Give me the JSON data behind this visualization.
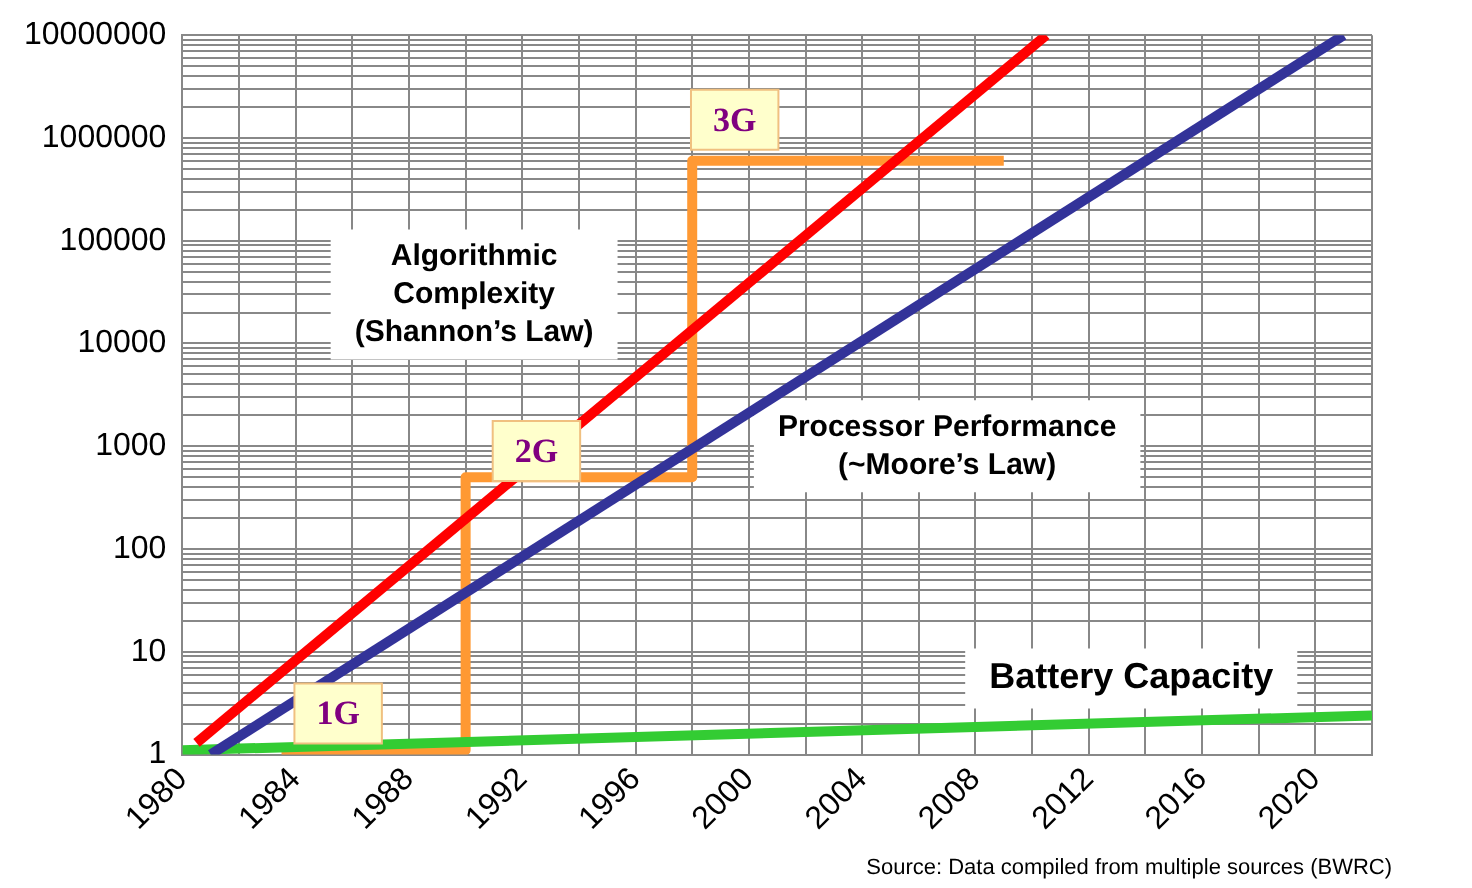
{
  "chart_data": {
    "type": "line",
    "log": "y",
    "grid": true,
    "legend": false,
    "marker": "none",
    "line_style": "solid",
    "xlim": [
      1980,
      2022
    ],
    "xticks": [
      1980,
      {
        "value": 1982,
        "label": null
      },
      1984,
      {
        "value": 1986,
        "label": null
      },
      1988,
      {
        "value": 1990,
        "label": null
      },
      1992,
      {
        "value": 1994,
        "label": null
      },
      1996,
      {
        "value": 1998,
        "label": null
      },
      2000,
      {
        "value": 2002,
        "label": null
      },
      2004,
      {
        "value": 2006,
        "label": null
      },
      2008,
      {
        "value": 2010,
        "label": null
      },
      2012,
      {
        "value": 2014,
        "label": null
      },
      2016,
      {
        "value": 2018,
        "label": null
      },
      2020,
      {
        "value": 2022,
        "label": null
      }
    ],
    "ylim": [
      1,
      10000000
    ],
    "yticks": [
      1,
      {
        "value": 2,
        "label": null
      },
      {
        "value": 3,
        "label": null
      },
      {
        "value": 4,
        "label": null
      },
      {
        "value": 5,
        "label": null
      },
      {
        "value": 6,
        "label": null
      },
      {
        "value": 7,
        "label": null
      },
      {
        "value": 8,
        "label": null
      },
      {
        "value": 9,
        "label": null
      },
      10,
      {
        "value": 20,
        "label": null
      },
      {
        "value": 30,
        "label": null
      },
      {
        "value": 40,
        "label": null
      },
      {
        "value": 50,
        "label": null
      },
      {
        "value": 60,
        "label": null
      },
      {
        "value": 70,
        "label": null
      },
      {
        "value": 80,
        "label": null
      },
      {
        "value": 90,
        "label": null
      },
      100,
      {
        "value": 200,
        "label": null
      },
      {
        "value": 300,
        "label": null
      },
      {
        "value": 400,
        "label": null
      },
      {
        "value": 500,
        "label": null
      },
      {
        "value": 600,
        "label": null
      },
      {
        "value": 700,
        "label": null
      },
      {
        "value": 800,
        "label": null
      },
      {
        "value": 900,
        "label": null
      },
      1000,
      {
        "value": 2000,
        "label": null
      },
      {
        "value": 3000,
        "label": null
      },
      {
        "value": 4000,
        "label": null
      },
      {
        "value": 5000,
        "label": null
      },
      {
        "value": 6000,
        "label": null
      },
      {
        "value": 7000,
        "label": null
      },
      {
        "value": 8000,
        "label": null
      },
      {
        "value": 9000,
        "label": null
      },
      10000,
      {
        "value": 20000,
        "label": null
      },
      {
        "value": 30000,
        "label": null
      },
      {
        "value": 40000,
        "label": null
      },
      {
        "value": 50000,
        "label": null
      },
      {
        "value": 60000,
        "label": null
      },
      {
        "value": 70000,
        "label": null
      },
      {
        "value": 80000,
        "label": null
      },
      {
        "value": 90000,
        "label": null
      },
      100000,
      {
        "value": 200000,
        "label": null
      },
      {
        "value": 300000,
        "label": null
      },
      {
        "value": 400000,
        "label": null
      },
      {
        "value": 500000,
        "label": null
      },
      {
        "value": 600000,
        "label": null
      },
      {
        "value": 700000,
        "label": null
      },
      {
        "value": 800000,
        "label": null
      },
      {
        "value": 900000,
        "label": null
      },
      1000000,
      {
        "value": 2000000,
        "label": null
      },
      {
        "value": 3000000,
        "label": null
      },
      {
        "value": 4000000,
        "label": null
      },
      {
        "value": 5000000,
        "label": null
      },
      {
        "value": 6000000,
        "label": null
      },
      {
        "value": 7000000,
        "label": null
      },
      {
        "value": 8000000,
        "label": null
      },
      {
        "value": 9000000,
        "label": null
      },
      10000000
    ],
    "series": [
      {
        "name": "Algorithmic Complexity (Shannon’s Law)",
        "color": "#ff0000",
        "x": [
          1980.5,
          2010.5
        ],
        "values": [
          1.3,
          10000000
        ]
      },
      {
        "name": "Processor Performance (~Moore’s Law)",
        "color": "#333399",
        "x": [
          1981,
          2021
        ],
        "values": [
          1,
          10000000
        ]
      },
      {
        "name": "Battery Capacity",
        "color": "#33cc33",
        "x": [
          1980,
          2022
        ],
        "values": [
          1.1,
          2.4
        ]
      },
      {
        "color": "#ff9933",
        "x": [
          1983.5,
          1990,
          1990,
          1998,
          1998,
          2009
        ],
        "values": [
          1.1,
          1.1,
          500,
          500,
          600000,
          600000
        ]
      }
    ],
    "annotations": [
      {
        "text": "1G",
        "x": 1985.5,
        "y": 2.5
      },
      {
        "text": "2G",
        "x": 1992.5,
        "y": 900
      },
      {
        "text": "3G",
        "x": 1999.5,
        "y": 1500000
      },
      "Source: Data compiled from multiple sources (BWRC)"
    ]
  }
}
